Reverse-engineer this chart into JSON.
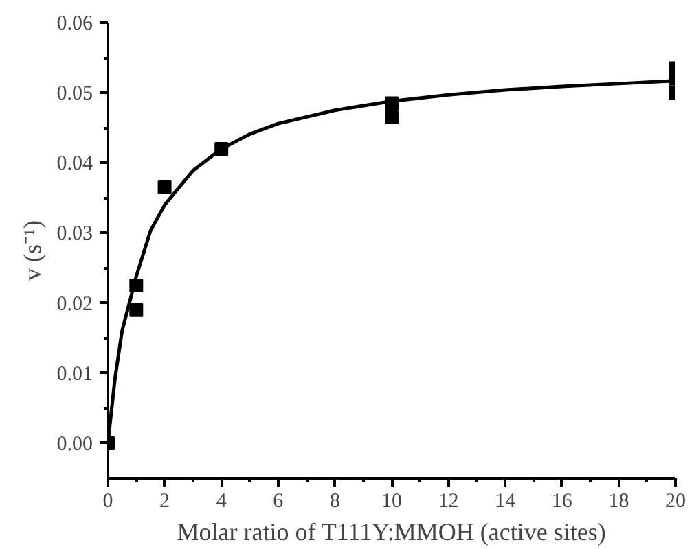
{
  "chart_data": {
    "type": "scatter",
    "xlabel": "Molar ratio of T111Y:MMOH (active sites)",
    "ylabel": "v (s⁻¹)",
    "xlim": [
      0,
      20
    ],
    "ylim": [
      -0.005,
      0.06
    ],
    "xticks": [
      0,
      2,
      4,
      6,
      8,
      10,
      12,
      14,
      16,
      18,
      20
    ],
    "yticks": [
      {
        "value": 0,
        "label": "0.00"
      },
      {
        "value": 0.01,
        "label": "0.01"
      },
      {
        "value": 0.02,
        "label": "0.02"
      },
      {
        "value": 0.03,
        "label": "0.03"
      },
      {
        "value": 0.04,
        "label": "0.04"
      },
      {
        "value": 0.05,
        "label": "0.05"
      },
      {
        "value": 0.06,
        "label": "0.06"
      }
    ],
    "grid": false,
    "marker": "square",
    "series": [
      {
        "color": "#000000",
        "x": [
          0,
          1,
          1,
          2,
          4,
          10,
          10,
          20,
          20,
          20
        ],
        "values": [
          0,
          0.0225,
          0.019,
          0.0365,
          0.042,
          0.0485,
          0.0465,
          0.0535,
          0.052,
          0.05
        ]
      },
      {
        "type": "line",
        "color": "#000000",
        "marker": "none",
        "line_style": "solid",
        "x": [
          0,
          0.25,
          0.5,
          1,
          1.5,
          2,
          3,
          4,
          5,
          6,
          8,
          10,
          12,
          14,
          16,
          18,
          20
        ],
        "values": [
          0,
          0.0092,
          0.016,
          0.0238,
          0.0303,
          0.034,
          0.0389,
          0.042,
          0.0441,
          0.0456,
          0.0475,
          0.0488,
          0.0497,
          0.0504,
          0.0509,
          0.0513,
          0.0517
        ]
      }
    ]
  }
}
